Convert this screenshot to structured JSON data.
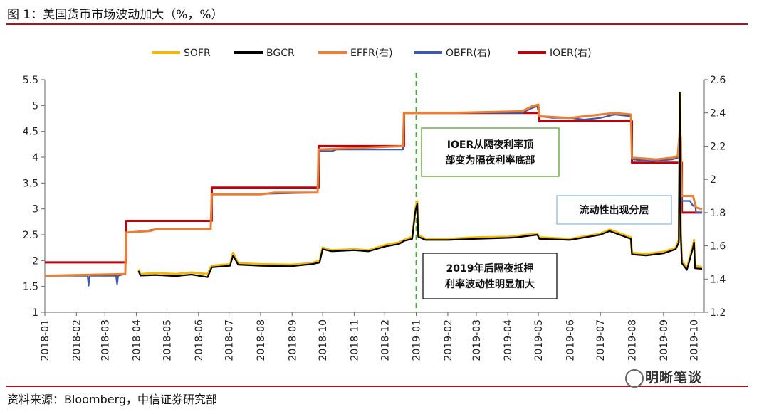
{
  "page": {
    "title": "图 1：美国货币市场波动加大（%，%）",
    "source": "资料来源：Bloomberg，中信证券研究部",
    "watermark": "明晰笔谈"
  },
  "chart_data": {
    "type": "line",
    "title": "",
    "xlabel": "",
    "ylabel": "",
    "y2label": "",
    "x_ticks": [
      "2018-01",
      "2018-02",
      "2018-03",
      "2018-04",
      "2018-05",
      "2018-06",
      "2018-07",
      "2018-08",
      "2018-09",
      "2018-10",
      "2018-11",
      "2018-12",
      "2019-01",
      "2019-02",
      "2019-03",
      "2019-04",
      "2019-05",
      "2019-06",
      "2019-07",
      "2019-08",
      "2019-09",
      "2019-10"
    ],
    "ylim": [
      1,
      5.5
    ],
    "y_ticks": [
      "1",
      "1.5",
      "2",
      "2.5",
      "3",
      "3.5",
      "4",
      "4.5",
      "5",
      "5.5"
    ],
    "y2lim": [
      1.2,
      2.6
    ],
    "y2_ticks": [
      "1.2",
      "1.4",
      "1.6",
      "1.8",
      "2",
      "2.2",
      "2.4",
      "2.6"
    ],
    "grid": false,
    "legend_position": "top-center",
    "colors": {
      "SOFR": "#f5b800",
      "BGCR": "#000000",
      "EFFR": "#ed7d31",
      "OBFR": "#3d5aa8",
      "IOER": "#c0000b",
      "divider": "#4aac3a",
      "box_green": "#70ad47",
      "box_blue": "#9dc3e6"
    },
    "series": [
      {
        "name": "IOER(右)",
        "axis": "right",
        "step": true,
        "points": [
          [
            "2018-01-01",
            1.5
          ],
          [
            "2018-03-22",
            1.75
          ],
          [
            "2018-06-14",
            1.95
          ],
          [
            "2018-09-27",
            2.2
          ],
          [
            "2018-12-20",
            2.4
          ],
          [
            "2019-05-02",
            2.35
          ],
          [
            "2019-08-01",
            2.1
          ],
          [
            "2019-09-19",
            1.8
          ],
          [
            "2019-10-09",
            1.8
          ]
        ]
      },
      {
        "name": "OBFR(右)",
        "axis": "right",
        "points": [
          [
            "2018-01-01",
            1.42
          ],
          [
            "2018-02-12",
            1.42
          ],
          [
            "2018-02-13",
            1.36
          ],
          [
            "2018-02-14",
            1.42
          ],
          [
            "2018-03-12",
            1.42
          ],
          [
            "2018-03-13",
            1.37
          ],
          [
            "2018-03-14",
            1.42
          ],
          [
            "2018-03-21",
            1.43
          ],
          [
            "2018-03-22",
            1.68
          ],
          [
            "2018-04-10",
            1.69
          ],
          [
            "2018-04-20",
            1.7
          ],
          [
            "2018-06-13",
            1.7
          ],
          [
            "2018-06-14",
            1.91
          ],
          [
            "2018-07-15",
            1.91
          ],
          [
            "2018-09-26",
            1.92
          ],
          [
            "2018-09-27",
            2.17
          ],
          [
            "2018-10-10",
            2.17
          ],
          [
            "2018-10-15",
            2.18
          ],
          [
            "2018-12-19",
            2.18
          ],
          [
            "2018-12-20",
            2.4
          ],
          [
            "2019-01-15",
            2.4
          ],
          [
            "2019-02-01",
            2.4
          ],
          [
            "2019-04-15",
            2.4
          ],
          [
            "2019-04-25",
            2.43
          ],
          [
            "2019-04-30",
            2.44
          ],
          [
            "2019-05-02",
            2.38
          ],
          [
            "2019-05-15",
            2.37
          ],
          [
            "2019-06-01",
            2.37
          ],
          [
            "2019-06-15",
            2.36
          ],
          [
            "2019-07-01",
            2.37
          ],
          [
            "2019-07-15",
            2.39
          ],
          [
            "2019-07-31",
            2.38
          ],
          [
            "2019-08-01",
            2.12
          ],
          [
            "2019-08-20",
            2.11
          ],
          [
            "2019-09-10",
            2.12
          ],
          [
            "2019-09-15",
            2.13
          ],
          [
            "2019-09-17",
            2.24
          ],
          [
            "2019-09-18",
            2.21
          ],
          [
            "2019-09-19",
            1.87
          ],
          [
            "2019-09-27",
            1.87
          ],
          [
            "2019-09-30",
            1.84
          ],
          [
            "2019-10-02",
            1.85
          ],
          [
            "2019-10-03",
            1.8
          ],
          [
            "2019-10-09",
            1.8
          ]
        ]
      },
      {
        "name": "EFFR(右)",
        "axis": "right",
        "points": [
          [
            "2018-01-01",
            1.42
          ],
          [
            "2018-03-21",
            1.43
          ],
          [
            "2018-03-22",
            1.68
          ],
          [
            "2018-04-15",
            1.69
          ],
          [
            "2018-04-20",
            1.7
          ],
          [
            "2018-06-13",
            1.7
          ],
          [
            "2018-06-14",
            1.91
          ],
          [
            "2018-08-01",
            1.91
          ],
          [
            "2018-08-15",
            1.92
          ],
          [
            "2018-09-26",
            1.92
          ],
          [
            "2018-09-27",
            2.18
          ],
          [
            "2018-12-19",
            2.2
          ],
          [
            "2018-12-20",
            2.4
          ],
          [
            "2019-02-01",
            2.4
          ],
          [
            "2019-04-15",
            2.41
          ],
          [
            "2019-04-25",
            2.44
          ],
          [
            "2019-05-01",
            2.45
          ],
          [
            "2019-05-02",
            2.38
          ],
          [
            "2019-06-01",
            2.37
          ],
          [
            "2019-07-01",
            2.39
          ],
          [
            "2019-07-15",
            2.4
          ],
          [
            "2019-07-31",
            2.39
          ],
          [
            "2019-08-01",
            2.13
          ],
          [
            "2019-08-25",
            2.12
          ],
          [
            "2019-09-10",
            2.13
          ],
          [
            "2019-09-15",
            2.14
          ],
          [
            "2019-09-17",
            2.3
          ],
          [
            "2019-09-18",
            2.25
          ],
          [
            "2019-09-19",
            1.9
          ],
          [
            "2019-09-30",
            1.9
          ],
          [
            "2019-10-03",
            1.83
          ],
          [
            "2019-10-09",
            1.82
          ]
        ]
      },
      {
        "name": "SOFR",
        "axis": "left",
        "points": [
          [
            "2018-04-03",
            1.83
          ],
          [
            "2018-04-05",
            1.74
          ],
          [
            "2018-04-20",
            1.76
          ],
          [
            "2018-05-10",
            1.74
          ],
          [
            "2018-05-25",
            1.77
          ],
          [
            "2018-06-10",
            1.74
          ],
          [
            "2018-06-14",
            1.9
          ],
          [
            "2018-07-02",
            1.93
          ],
          [
            "2018-07-05",
            2.15
          ],
          [
            "2018-07-10",
            1.95
          ],
          [
            "2018-08-01",
            1.93
          ],
          [
            "2018-08-31",
            1.92
          ],
          [
            "2018-09-20",
            1.95
          ],
          [
            "2018-09-28",
            2.0
          ],
          [
            "2018-10-01",
            2.25
          ],
          [
            "2018-10-10",
            2.2
          ],
          [
            "2018-11-01",
            2.22
          ],
          [
            "2018-11-15",
            2.2
          ],
          [
            "2018-12-01",
            2.3
          ],
          [
            "2018-12-15",
            2.35
          ],
          [
            "2018-12-20",
            2.4
          ],
          [
            "2018-12-28",
            2.46
          ],
          [
            "2018-12-31",
            3.0
          ],
          [
            "2019-01-02",
            3.15
          ],
          [
            "2019-01-03",
            2.5
          ],
          [
            "2019-01-10",
            2.42
          ],
          [
            "2019-02-01",
            2.42
          ],
          [
            "2019-03-01",
            2.45
          ],
          [
            "2019-04-01",
            2.46
          ],
          [
            "2019-04-10",
            2.48
          ],
          [
            "2019-04-30",
            2.52
          ],
          [
            "2019-05-02",
            2.45
          ],
          [
            "2019-06-01",
            2.42
          ],
          [
            "2019-07-01",
            2.52
          ],
          [
            "2019-07-10",
            2.6
          ],
          [
            "2019-07-31",
            2.45
          ],
          [
            "2019-08-01",
            2.15
          ],
          [
            "2019-08-15",
            2.13
          ],
          [
            "2019-09-01",
            2.17
          ],
          [
            "2019-09-13",
            2.25
          ],
          [
            "2019-09-16",
            2.4
          ],
          [
            "2019-09-17",
            5.25
          ],
          [
            "2019-09-18",
            2.55
          ],
          [
            "2019-09-19",
            2.0
          ],
          [
            "2019-09-24",
            1.85
          ],
          [
            "2019-09-30",
            2.3
          ],
          [
            "2019-10-01",
            2.4
          ],
          [
            "2019-10-02",
            1.9
          ],
          [
            "2019-10-09",
            1.87
          ]
        ]
      },
      {
        "name": "BGCR",
        "axis": "left",
        "points": [
          [
            "2018-04-03",
            1.8
          ],
          [
            "2018-04-05",
            1.71
          ],
          [
            "2018-04-20",
            1.72
          ],
          [
            "2018-05-10",
            1.7
          ],
          [
            "2018-05-25",
            1.73
          ],
          [
            "2018-06-10",
            1.68
          ],
          [
            "2018-06-14",
            1.87
          ],
          [
            "2018-07-02",
            1.9
          ],
          [
            "2018-07-05",
            2.1
          ],
          [
            "2018-07-10",
            1.92
          ],
          [
            "2018-08-01",
            1.9
          ],
          [
            "2018-08-31",
            1.89
          ],
          [
            "2018-09-20",
            1.93
          ],
          [
            "2018-09-28",
            1.96
          ],
          [
            "2018-10-01",
            2.22
          ],
          [
            "2018-10-10",
            2.18
          ],
          [
            "2018-11-01",
            2.2
          ],
          [
            "2018-11-15",
            2.18
          ],
          [
            "2018-12-01",
            2.27
          ],
          [
            "2018-12-15",
            2.32
          ],
          [
            "2018-12-20",
            2.38
          ],
          [
            "2018-12-28",
            2.42
          ],
          [
            "2018-12-31",
            2.95
          ],
          [
            "2019-01-02",
            3.1
          ],
          [
            "2019-01-03",
            2.46
          ],
          [
            "2019-01-10",
            2.4
          ],
          [
            "2019-02-01",
            2.4
          ],
          [
            "2019-03-01",
            2.42
          ],
          [
            "2019-04-01",
            2.44
          ],
          [
            "2019-04-10",
            2.45
          ],
          [
            "2019-04-30",
            2.5
          ],
          [
            "2019-05-02",
            2.42
          ],
          [
            "2019-06-01",
            2.4
          ],
          [
            "2019-07-01",
            2.5
          ],
          [
            "2019-07-10",
            2.57
          ],
          [
            "2019-07-31",
            2.42
          ],
          [
            "2019-08-01",
            2.12
          ],
          [
            "2019-08-15",
            2.1
          ],
          [
            "2019-09-01",
            2.14
          ],
          [
            "2019-09-13",
            2.22
          ],
          [
            "2019-09-16",
            2.35
          ],
          [
            "2019-09-17",
            5.25
          ],
          [
            "2019-09-18",
            2.5
          ],
          [
            "2019-09-19",
            1.95
          ],
          [
            "2019-09-24",
            1.82
          ],
          [
            "2019-09-30",
            2.25
          ],
          [
            "2019-10-01",
            2.35
          ],
          [
            "2019-10-02",
            1.85
          ],
          [
            "2019-10-09",
            1.84
          ]
        ]
      }
    ],
    "legend": [
      "SOFR",
      "BGCR",
      "EFFR(右)",
      "OBFR(右)",
      "IOER(右)"
    ],
    "annotations": [
      {
        "lines": [
          "IOER从隔夜利率顶",
          "部变为隔夜利率底部"
        ],
        "border": "green"
      },
      {
        "lines": [
          "流动性出现分层"
        ],
        "border": "blue"
      },
      {
        "lines": [
          "2019年后隔夜抵押",
          "利率波动性明显加大"
        ],
        "border": "black"
      }
    ]
  }
}
